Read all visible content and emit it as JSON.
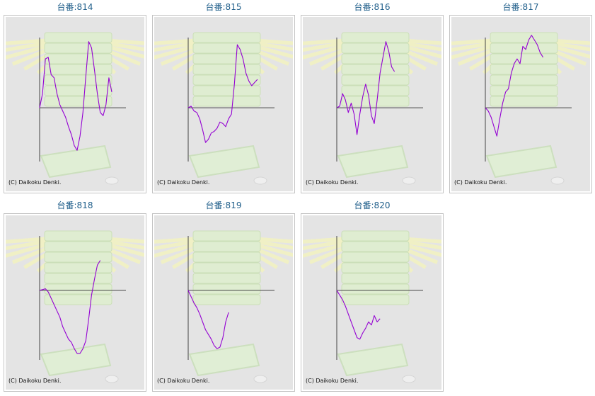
{
  "watermark": "(C) Daikoku Denki.",
  "colors": {
    "line": "#9400d3",
    "axis": "#444444",
    "title": "#1f5e8a",
    "panel_bg": "#e4e4e4"
  },
  "chart_data": [
    {
      "type": "line",
      "title": "台番:814",
      "values": [
        0,
        18,
        62,
        64,
        42,
        38,
        18,
        4,
        -4,
        -12,
        -24,
        -34,
        -48,
        -54,
        -36,
        -6,
        40,
        84,
        76,
        48,
        18,
        -6,
        -10,
        4,
        38,
        20
      ],
      "ylim": [
        -70,
        90
      ]
    },
    {
      "type": "line",
      "title": "台番:815",
      "values": [
        0,
        2,
        -4,
        -6,
        -14,
        -28,
        -44,
        -40,
        -32,
        -30,
        -26,
        -18,
        -20,
        -24,
        -14,
        -8,
        30,
        80,
        74,
        62,
        44,
        34,
        28,
        32,
        36
      ],
      "ylim": [
        -70,
        90
      ]
    },
    {
      "type": "line",
      "title": "台番:816",
      "values": [
        0,
        2,
        18,
        10,
        -6,
        6,
        -8,
        -34,
        -8,
        14,
        30,
        16,
        -10,
        -20,
        10,
        44,
        64,
        84,
        72,
        52,
        46
      ],
      "ylim": [
        -70,
        90
      ]
    },
    {
      "type": "line",
      "title": "台番:817",
      "values": [
        0,
        -4,
        -12,
        -24,
        -36,
        -14,
        6,
        20,
        24,
        44,
        56,
        62,
        56,
        78,
        74,
        86,
        92,
        86,
        80,
        70,
        64
      ],
      "ylim": [
        -70,
        90
      ]
    },
    {
      "type": "line",
      "title": "台番:818",
      "values": [
        0,
        1,
        2,
        -2,
        -10,
        -18,
        -26,
        -34,
        -46,
        -54,
        -62,
        -66,
        -74,
        -80,
        -80,
        -74,
        -64,
        -36,
        -6,
        14,
        32,
        38
      ],
      "ylim": [
        -90,
        70
      ]
    },
    {
      "type": "line",
      "title": "台番:819",
      "values": [
        0,
        -8,
        -16,
        -22,
        -30,
        -40,
        -50,
        -56,
        -62,
        -70,
        -74,
        -72,
        -60,
        -40,
        -28
      ],
      "ylim": [
        -90,
        70
      ]
    },
    {
      "type": "line",
      "title": "台番:820",
      "values": [
        0,
        -6,
        -12,
        -20,
        -30,
        -40,
        -50,
        -60,
        -62,
        -54,
        -48,
        -40,
        -44,
        -32,
        -40,
        -36
      ],
      "ylim": [
        -90,
        70
      ]
    }
  ]
}
